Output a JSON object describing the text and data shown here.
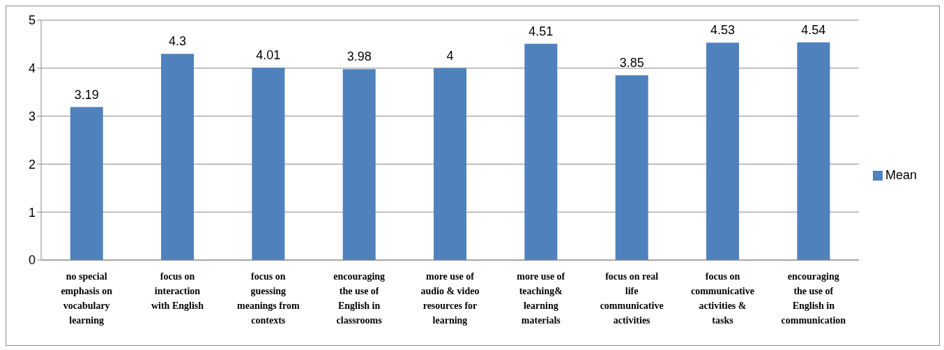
{
  "chart_data": {
    "type": "bar",
    "categories": [
      "no special emphasis on vocabulary learning",
      "focus on interaction with English",
      "focus on guessing meanings from contexts",
      "encouraging the use of English in classrooms",
      "more use of audio & video resources for learning",
      "more use of teaching& learning materials",
      "focus on real life communicative activities",
      "focus on communicative activities & tasks",
      "encouraging the use of English in communication"
    ],
    "series": [
      {
        "name": "Mean",
        "color": "#4f81bd",
        "values": [
          3.19,
          4.3,
          4.01,
          3.98,
          4,
          4.51,
          3.85,
          4.53,
          4.54
        ]
      }
    ],
    "ylim": [
      0,
      5
    ],
    "yticks": [
      0,
      1,
      2,
      3,
      4,
      5
    ],
    "grid": "y",
    "legend": "right",
    "data_labels": true
  }
}
